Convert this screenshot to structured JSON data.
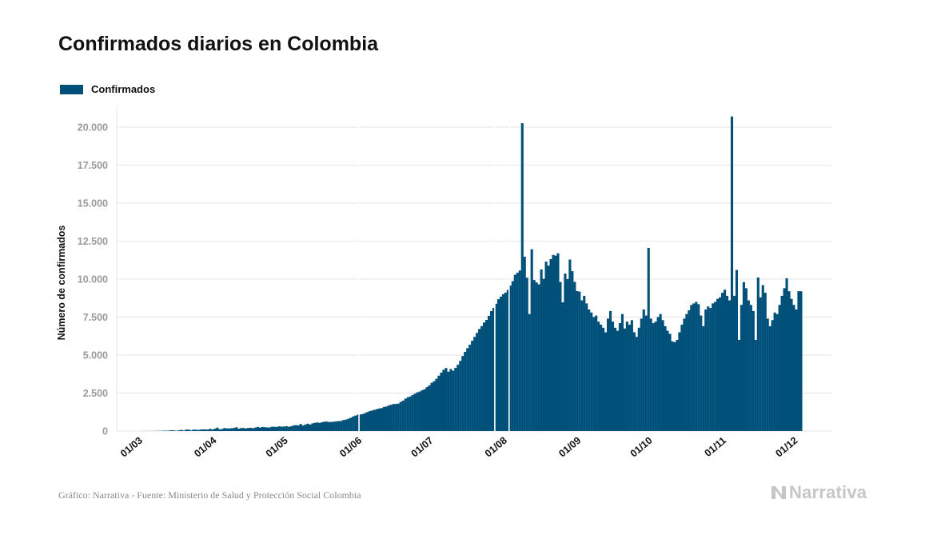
{
  "header": {
    "title": "Confirmados diarios en Colombia"
  },
  "footer": {
    "source": "Gráfico: Narrativa - Fuente: Ministerio de Salud y Protección Social Colombia"
  },
  "brand": {
    "name": "Narrativa",
    "icon": "narrativa-logo-icon"
  },
  "colors": {
    "bar": "#005079",
    "grid": "#e6e6e6",
    "brand": "#c6c6c6"
  },
  "chart_data": {
    "type": "bar",
    "title": "Confirmados diarios en Colombia",
    "xlabel": "",
    "ylabel": "Número de confirmados",
    "ylim": [
      0,
      21000
    ],
    "yticks": [
      0,
      2500,
      5000,
      7500,
      10000,
      12500,
      15000,
      17500,
      20000
    ],
    "ytick_labels": [
      "0",
      "2.500",
      "5.000",
      "7.500",
      "10.000",
      "12.500",
      "15.000",
      "17.500",
      "20.000"
    ],
    "xtick_labels": [
      "01/03",
      "01/04",
      "01/05",
      "01/06",
      "01/07",
      "01/08",
      "01/09",
      "01/10",
      "01/11",
      "01/12"
    ],
    "xtick_day_index": [
      0,
      31,
      61,
      92,
      122,
      153,
      184,
      214,
      245,
      275
    ],
    "grid": true,
    "legend": "top-left",
    "x_start": "2020-03-01",
    "series": [
      {
        "name": "Confirmados",
        "values": [
          0,
          0,
          0,
          0,
          0,
          0,
          3,
          6,
          1,
          4,
          7,
          9,
          13,
          12,
          20,
          28,
          21,
          41,
          52,
          36,
          18,
          50,
          75,
          39,
          96,
          94,
          42,
          89,
          90,
          70,
          96,
          108,
          106,
          98,
          148,
          100,
          156,
          222,
          120,
          132,
          198,
          175,
          176,
          184,
          204,
          248,
          161,
          193,
          203,
          171,
          201,
          213,
          183,
          229,
          270,
          227,
          269,
          252,
          235,
          239,
          285,
          281,
          271,
          310,
          290,
          297,
          321,
          281,
          311,
          372,
          389,
          370,
          465,
          368,
          431,
          484,
          430,
          505,
          544,
          564,
          538,
          578,
          616,
          621,
          592,
          602,
          612,
          642,
          652,
          663,
          729,
          756,
          807,
          874,
          958,
          1016,
          1072,
          1089,
          1120,
          1180,
          1249,
          1311,
          1350,
          1398,
          1441,
          1486,
          1509,
          1584,
          1616,
          1691,
          1727,
          1780,
          1783,
          1809,
          1917,
          2001,
          2132,
          2224,
          2280,
          2373,
          2461,
          2551,
          2600,
          2690,
          2750,
          2892,
          3008,
          3176,
          3283,
          3445,
          3645,
          3846,
          4028,
          4148,
          3908,
          4081,
          3972,
          4163,
          4363,
          4617,
          4939,
          5213,
          5455,
          5682,
          5943,
          6199,
          6460,
          6712,
          6906,
          7142,
          7313,
          7581,
          7897,
          8106,
          8379,
          8675,
          8845,
          9005,
          9115,
          9288,
          9570,
          9867,
          10284,
          10420,
          10561,
          20260,
          11470,
          10090,
          7700,
          11966,
          9940,
          9780,
          9654,
          10634,
          10017,
          11151,
          10887,
          11315,
          11589,
          11546,
          11700,
          9810,
          8469,
          10365,
          10000,
          11286,
          10521,
          9818,
          9210,
          9180,
          8600,
          8900,
          8400,
          8000,
          7800,
          7500,
          7600,
          7200,
          7000,
          6800,
          6500,
          7400,
          7900,
          7200,
          6800,
          6600,
          7100,
          7700,
          6750,
          7200,
          7000,
          7300,
          6500,
          6200,
          6800,
          7400,
          8000,
          7600,
          12050,
          7400,
          7100,
          7200,
          7500,
          7700,
          7300,
          6900,
          6600,
          6400,
          5900,
          5850,
          6000,
          6500,
          7000,
          7400,
          7700,
          7950,
          8300,
          8400,
          8500,
          8350,
          7600,
          6900,
          8000,
          8200,
          8100,
          8400,
          8500,
          8700,
          8800,
          9100,
          9300,
          8900,
          8600,
          20700,
          8900,
          10600,
          6000,
          8300,
          9800,
          9400,
          8600,
          8300,
          7900,
          6000,
          10100,
          8800,
          9600,
          9100,
          7400,
          6900,
          7300,
          7800,
          7700,
          8300,
          8900,
          9400,
          10050,
          9200,
          8700,
          8300,
          8000,
          9200,
          9200
        ],
        "gaps_after_day": [
          96,
          153,
          159
        ]
      }
    ]
  }
}
